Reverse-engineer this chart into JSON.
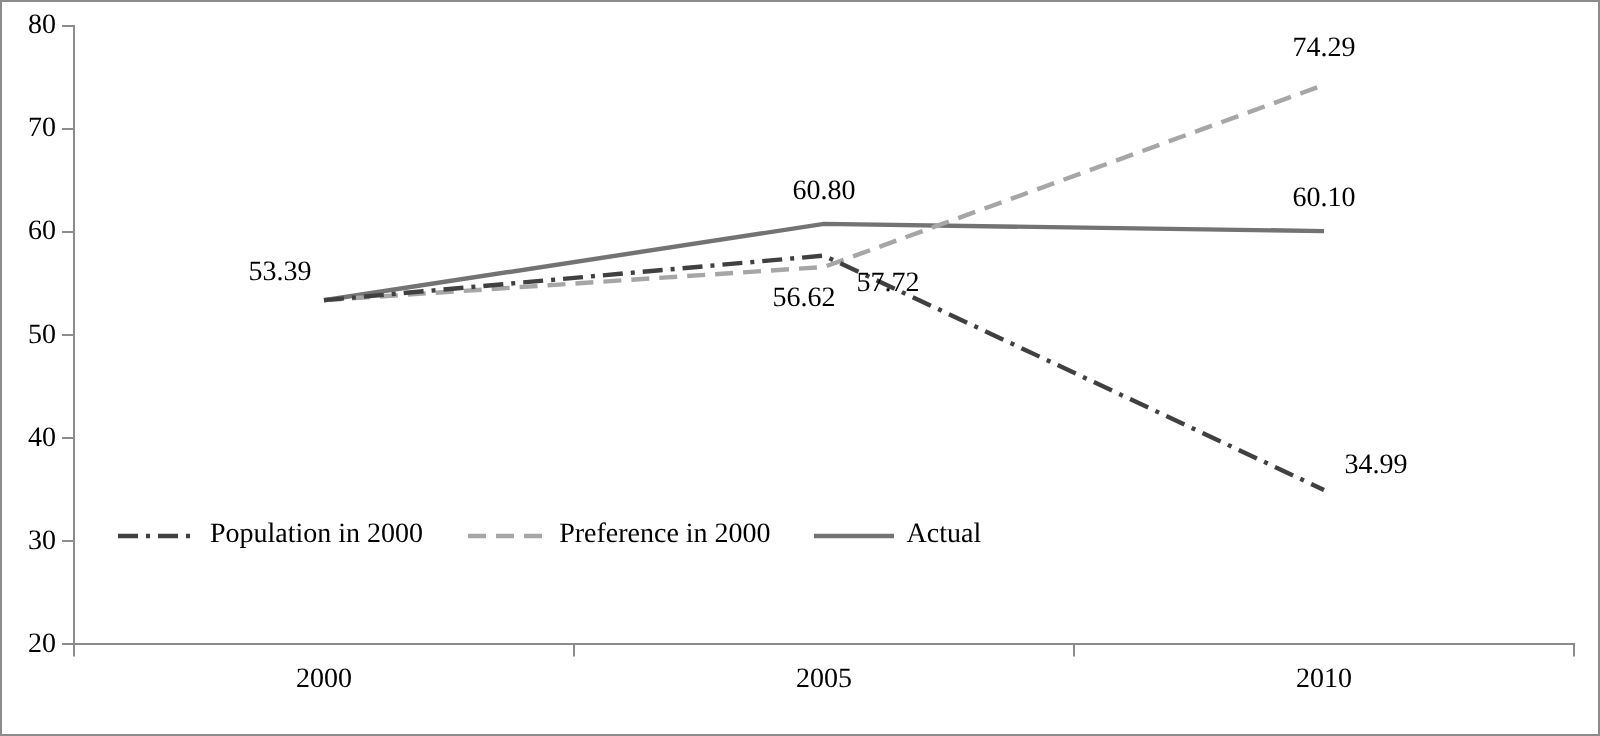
{
  "chart_data": {
    "type": "line",
    "categories": [
      "2000",
      "2005",
      "2010"
    ],
    "series": [
      {
        "name": "Population in 2000",
        "color": "#404040",
        "line_style": "dashdot",
        "values": [
          53.4,
          57.72,
          34.99
        ],
        "value_labels": [
          null,
          "57.72",
          "34.99"
        ]
      },
      {
        "name": "Preference in 2000",
        "color": "#a6a6a6",
        "line_style": "dashed",
        "values": [
          53.4,
          56.62,
          74.29
        ],
        "value_labels": [
          null,
          "56.62",
          "74.29"
        ]
      },
      {
        "name": "Actual",
        "color": "#737373",
        "line_style": "solid",
        "values": [
          53.39,
          60.8,
          60.1
        ],
        "value_labels": [
          "53.39",
          "60.80",
          "60.10"
        ]
      }
    ],
    "ylim": [
      20,
      80
    ],
    "yticks": [
      20,
      30,
      40,
      50,
      60,
      70,
      80
    ],
    "legend": "bottom left",
    "marker": "none"
  }
}
